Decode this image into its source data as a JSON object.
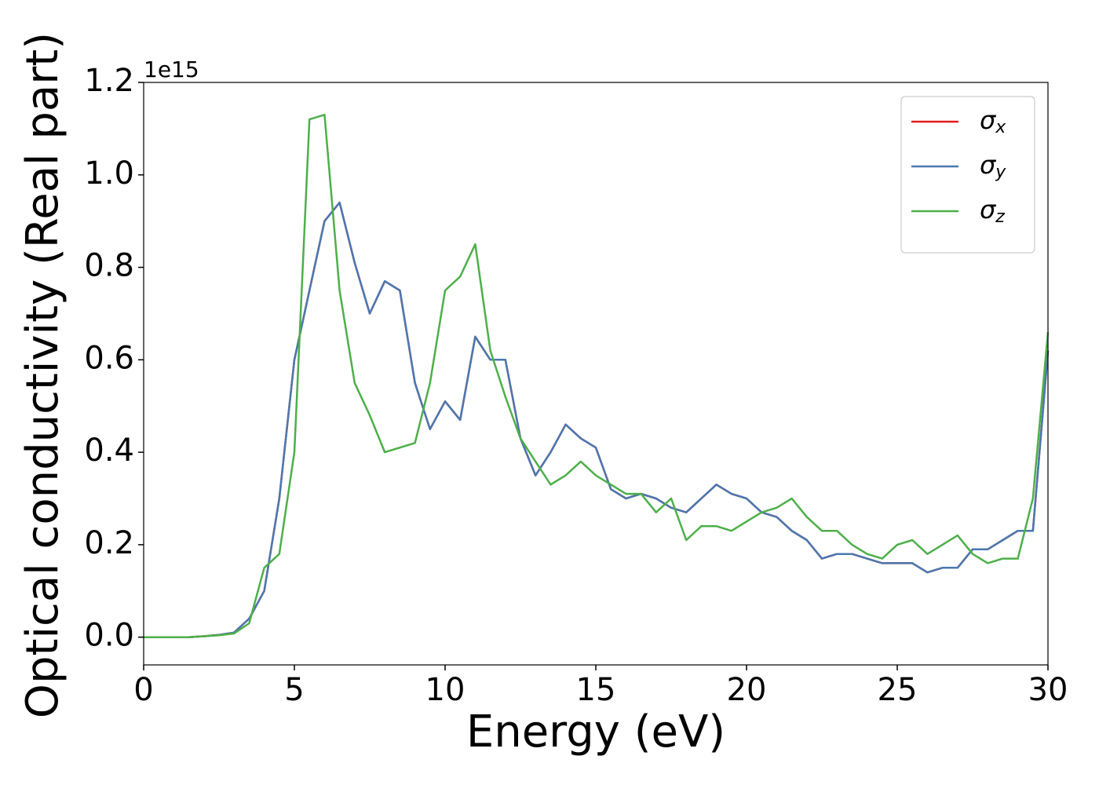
{
  "chart_data": {
    "type": "line",
    "x_label": "Energy (eV)",
    "y_label": "Optical conductivity (Real part)",
    "y_offset_label": "1e15",
    "x": [
      0,
      0.5,
      1,
      1.5,
      2,
      2.5,
      3,
      3.5,
      4,
      4.5,
      5,
      5.5,
      6,
      6.5,
      7,
      7.5,
      8,
      8.5,
      9,
      9.5,
      10,
      10.5,
      11,
      11.5,
      12,
      12.5,
      13,
      13.5,
      14,
      14.5,
      15,
      15.5,
      16,
      16.5,
      17,
      17.5,
      18,
      18.5,
      19,
      19.5,
      20,
      20.5,
      21,
      21.5,
      22,
      22.5,
      23,
      23.5,
      24,
      24.5,
      25,
      25.5,
      26,
      26.5,
      27,
      27.5,
      28,
      28.5,
      29,
      29.5,
      30
    ],
    "series": [
      {
        "name": "σx",
        "color": "#e41a1c",
        "values": [
          0,
          0,
          0,
          0,
          0.002,
          0.005,
          0.01,
          0.04,
          0.1,
          0.3,
          0.6,
          0.75,
          0.9,
          0.94,
          0.81,
          0.7,
          0.77,
          0.75,
          0.55,
          0.45,
          0.51,
          0.47,
          0.65,
          0.6,
          0.6,
          0.43,
          0.35,
          0.4,
          0.46,
          0.43,
          0.41,
          0.32,
          0.3,
          0.31,
          0.3,
          0.28,
          0.27,
          0.3,
          0.33,
          0.31,
          0.3,
          0.27,
          0.26,
          0.23,
          0.21,
          0.17,
          0.18,
          0.18,
          0.17,
          0.16,
          0.16,
          0.16,
          0.14,
          0.15,
          0.15,
          0.19,
          0.19,
          0.21,
          0.23,
          0.23,
          0.62
        ]
      },
      {
        "name": "σy",
        "color": "#4a78b0",
        "values": [
          0,
          0,
          0,
          0,
          0.002,
          0.005,
          0.01,
          0.04,
          0.1,
          0.3,
          0.6,
          0.75,
          0.9,
          0.94,
          0.81,
          0.7,
          0.77,
          0.75,
          0.55,
          0.45,
          0.51,
          0.47,
          0.65,
          0.6,
          0.6,
          0.43,
          0.35,
          0.4,
          0.46,
          0.43,
          0.41,
          0.32,
          0.3,
          0.31,
          0.3,
          0.28,
          0.27,
          0.3,
          0.33,
          0.31,
          0.3,
          0.27,
          0.26,
          0.23,
          0.21,
          0.17,
          0.18,
          0.18,
          0.17,
          0.16,
          0.16,
          0.16,
          0.14,
          0.15,
          0.15,
          0.19,
          0.19,
          0.21,
          0.23,
          0.23,
          0.62
        ]
      },
      {
        "name": "σz",
        "color": "#4daf4a",
        "values": [
          0,
          0,
          0,
          0,
          0.002,
          0.004,
          0.008,
          0.03,
          0.15,
          0.18,
          0.4,
          1.12,
          1.13,
          0.75,
          0.55,
          0.48,
          0.4,
          0.41,
          0.42,
          0.55,
          0.75,
          0.78,
          0.85,
          0.62,
          0.52,
          0.43,
          0.38,
          0.33,
          0.35,
          0.38,
          0.35,
          0.33,
          0.31,
          0.31,
          0.27,
          0.3,
          0.21,
          0.24,
          0.24,
          0.23,
          0.25,
          0.27,
          0.28,
          0.3,
          0.26,
          0.23,
          0.23,
          0.2,
          0.18,
          0.17,
          0.2,
          0.21,
          0.18,
          0.2,
          0.22,
          0.18,
          0.16,
          0.17,
          0.17,
          0.3,
          0.66
        ]
      }
    ],
    "xlim": [
      0,
      30
    ],
    "xticks": [
      0,
      5,
      10,
      15,
      20,
      25,
      30
    ],
    "ylim": [
      -0.06,
      1.2
    ],
    "yticks": [
      {
        "value": 0,
        "label": "0.0"
      },
      0.2,
      0.4,
      0.6,
      0.8,
      {
        "value": 1,
        "label": "1.0"
      },
      1.2
    ],
    "legend": "upper right",
    "grid": false
  }
}
